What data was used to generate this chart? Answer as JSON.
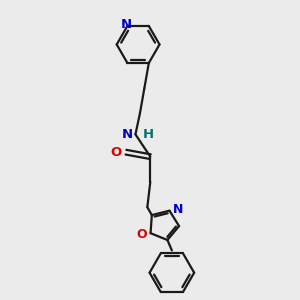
{
  "bg_color": "#ebebeb",
  "bond_color": "#1a1a1a",
  "N_color": "#0000cc",
  "O_color": "#dd0000",
  "H_color": "#007070",
  "figsize": [
    3.0,
    3.0
  ],
  "dpi": 100,
  "xlim": [
    0,
    10
  ],
  "ylim": [
    0,
    10
  ]
}
